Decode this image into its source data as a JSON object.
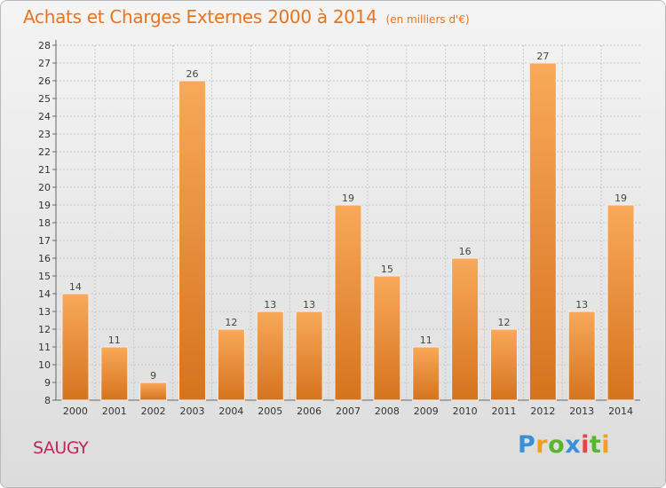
{
  "header": {
    "title": "Achats et Charges Externes 2000 à 2014",
    "subtitle": "(en milliers d'€)"
  },
  "footer": {
    "place": "SAUGY",
    "logo_text": "Proxiti"
  },
  "colors": {
    "title": "#e8741e",
    "place": "#c4255a",
    "bar_light": "#f8a95a",
    "bar_dark": "#d9751e"
  },
  "chart_data": {
    "type": "bar",
    "title": "Achats et Charges Externes 2000 à 2014",
    "subtitle": "(en milliers d'€)",
    "categories": [
      "2000",
      "2001",
      "2002",
      "2003",
      "2004",
      "2005",
      "2006",
      "2007",
      "2008",
      "2009",
      "2010",
      "2011",
      "2012",
      "2013",
      "2014"
    ],
    "values": [
      14,
      11,
      9,
      26,
      12,
      13,
      13,
      19,
      15,
      11,
      16,
      12,
      27,
      13,
      19
    ],
    "xlabel": "",
    "ylabel": "",
    "ylim": [
      8,
      28
    ],
    "ytick_step": 1,
    "grid": true,
    "data_labels": true
  }
}
